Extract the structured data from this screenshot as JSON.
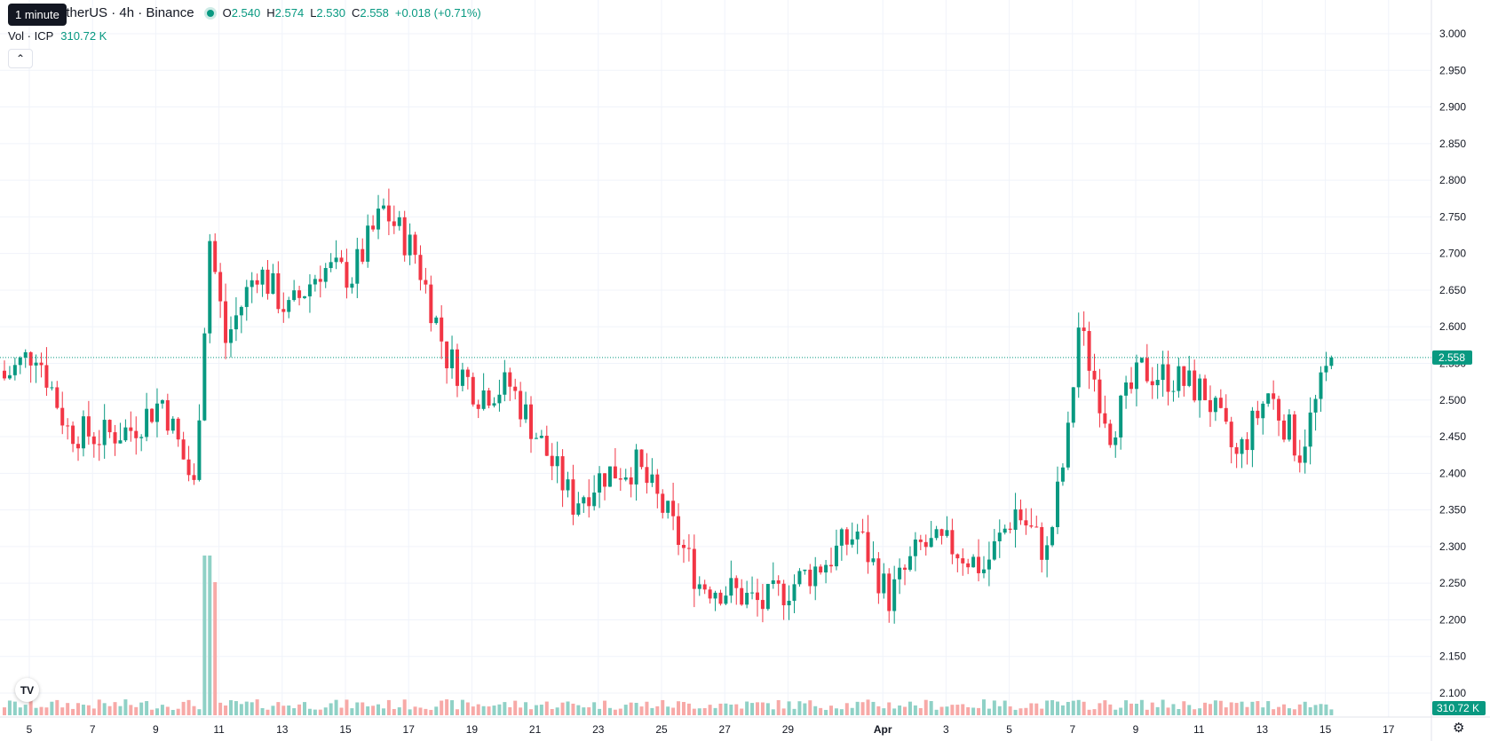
{
  "header": {
    "symbol": "etherUS · 4h · Binance",
    "tooltip": "1 minute",
    "ohlc": [
      {
        "k": "O",
        "v": "2.540"
      },
      {
        "k": "H",
        "v": "2.574"
      },
      {
        "k": "L",
        "v": "2.530"
      },
      {
        "k": "C",
        "v": "2.558"
      }
    ],
    "change": "+0.018 (+0.71%)",
    "volume_label": "Vol · ICP",
    "volume_value": "310.72 K",
    "collapse_icon": "chevron-up-icon",
    "logo_icon": "tradingview-logo-icon",
    "settings_icon": "gear-icon"
  },
  "colors": {
    "up": "#089981",
    "down": "#f23645",
    "volume_up": "#8fd1c6",
    "volume_down": "#f7a9a7",
    "grid": "#f0f3fa",
    "text": "#131722"
  },
  "chart_data": {
    "type": "candlestick",
    "interval": "4h",
    "y_ticks": [
      "3.000",
      "2.950",
      "2.900",
      "2.850",
      "2.800",
      "2.750",
      "2.700",
      "2.650",
      "2.600",
      "2.550",
      "2.500",
      "2.450",
      "2.400",
      "2.350",
      "2.300",
      "2.250",
      "2.200",
      "2.150",
      "2.100"
    ],
    "ylim": [
      2.1,
      3.0
    ],
    "x_ticks": [
      "5",
      "7",
      "9",
      "11",
      "13",
      "15",
      "17",
      "19",
      "21",
      "23",
      "25",
      "27",
      "29",
      "Apr",
      "3",
      "5",
      "7",
      "9",
      "11",
      "13",
      "15",
      "17"
    ],
    "last_price_label": "2.558",
    "last_volume_label": "310.72 K",
    "grid": true,
    "daily_path": [
      {
        "date": "Mar 5",
        "price": 2.53
      },
      {
        "date": "Mar 6",
        "price": 2.57
      },
      {
        "date": "Mar 7",
        "price": 2.46
      },
      {
        "date": "Mar 8",
        "price": 2.45
      },
      {
        "date": "Mar 9",
        "price": 2.46
      },
      {
        "date": "Mar 10",
        "price": 2.5
      },
      {
        "date": "Mar 11",
        "price": 2.38
      },
      {
        "date": "Mar 11 12:00",
        "price": 2.72
      },
      {
        "date": "Mar 12",
        "price": 2.58
      },
      {
        "date": "Mar 13",
        "price": 2.68
      },
      {
        "date": "Mar 14",
        "price": 2.62
      },
      {
        "date": "Mar 15",
        "price": 2.68
      },
      {
        "date": "Mar 16",
        "price": 2.67
      },
      {
        "date": "Mar 17",
        "price": 2.76
      },
      {
        "date": "Mar 18",
        "price": 2.7
      },
      {
        "date": "Mar 19",
        "price": 2.56
      },
      {
        "date": "Mar 20",
        "price": 2.51
      },
      {
        "date": "Mar 21",
        "price": 2.52
      },
      {
        "date": "Mar 22",
        "price": 2.44
      },
      {
        "date": "Mar 23",
        "price": 2.36
      },
      {
        "date": "Mar 24",
        "price": 2.4
      },
      {
        "date": "Mar 25",
        "price": 2.41
      },
      {
        "date": "Mar 26",
        "price": 2.34
      },
      {
        "date": "Mar 27",
        "price": 2.25
      },
      {
        "date": "Mar 28",
        "price": 2.24
      },
      {
        "date": "Mar 29",
        "price": 2.22
      },
      {
        "date": "Mar 30",
        "price": 2.25
      },
      {
        "date": "Mar 31",
        "price": 2.28
      },
      {
        "date": "Apr 1",
        "price": 2.32
      },
      {
        "date": "Apr 2",
        "price": 2.23
      },
      {
        "date": "Apr 3",
        "price": 2.3
      },
      {
        "date": "Apr 4",
        "price": 2.3
      },
      {
        "date": "Apr 5",
        "price": 2.27
      },
      {
        "date": "Apr 6",
        "price": 2.35
      },
      {
        "date": "Apr 7",
        "price": 2.29
      },
      {
        "date": "Apr 7 16:00",
        "price": 2.45
      },
      {
        "date": "Apr 8",
        "price": 2.6
      },
      {
        "date": "Apr 9",
        "price": 2.46
      },
      {
        "date": "Apr 10",
        "price": 2.54
      },
      {
        "date": "Apr 11",
        "price": 2.53
      },
      {
        "date": "Apr 12",
        "price": 2.51
      },
      {
        "date": "Apr 13",
        "price": 2.42
      },
      {
        "date": "Apr 14",
        "price": 2.51
      },
      {
        "date": "Apr 15",
        "price": 2.43
      },
      {
        "date": "Apr 16",
        "price": 2.558
      }
    ],
    "volume_spike": {
      "date": "Mar 11",
      "volume_ratio": 7
    }
  }
}
